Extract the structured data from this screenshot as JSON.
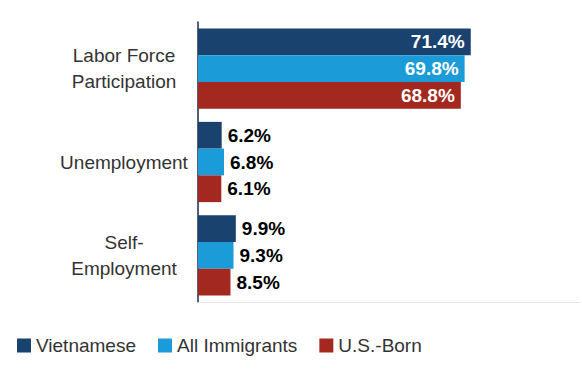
{
  "chart_data": {
    "type": "bar",
    "orientation": "horizontal",
    "categories": [
      "Labor Force\nParticipation",
      "Unemployment",
      "Self-\nEmployment"
    ],
    "series": [
      {
        "name": "Vietnamese",
        "color": "#1a426f",
        "values": [
          71.4,
          6.2,
          9.9
        ],
        "value_labels": [
          "71.4%",
          "6.2%",
          "9.9%"
        ]
      },
      {
        "name": "All Immigrants",
        "color": "#1b9bd7",
        "values": [
          69.8,
          6.8,
          9.3
        ],
        "value_labels": [
          "69.8%",
          "6.8%",
          "9.3%"
        ]
      },
      {
        "name": "U.S.-Born",
        "color": "#a3281f",
        "values": [
          68.8,
          6.1,
          8.5
        ],
        "value_labels": [
          "68.8%",
          "6.1%",
          "8.5%"
        ]
      }
    ],
    "xlim": [
      0,
      100
    ],
    "grid": false,
    "legend": "bottom",
    "data_labels": true,
    "tick_labels": "y"
  }
}
